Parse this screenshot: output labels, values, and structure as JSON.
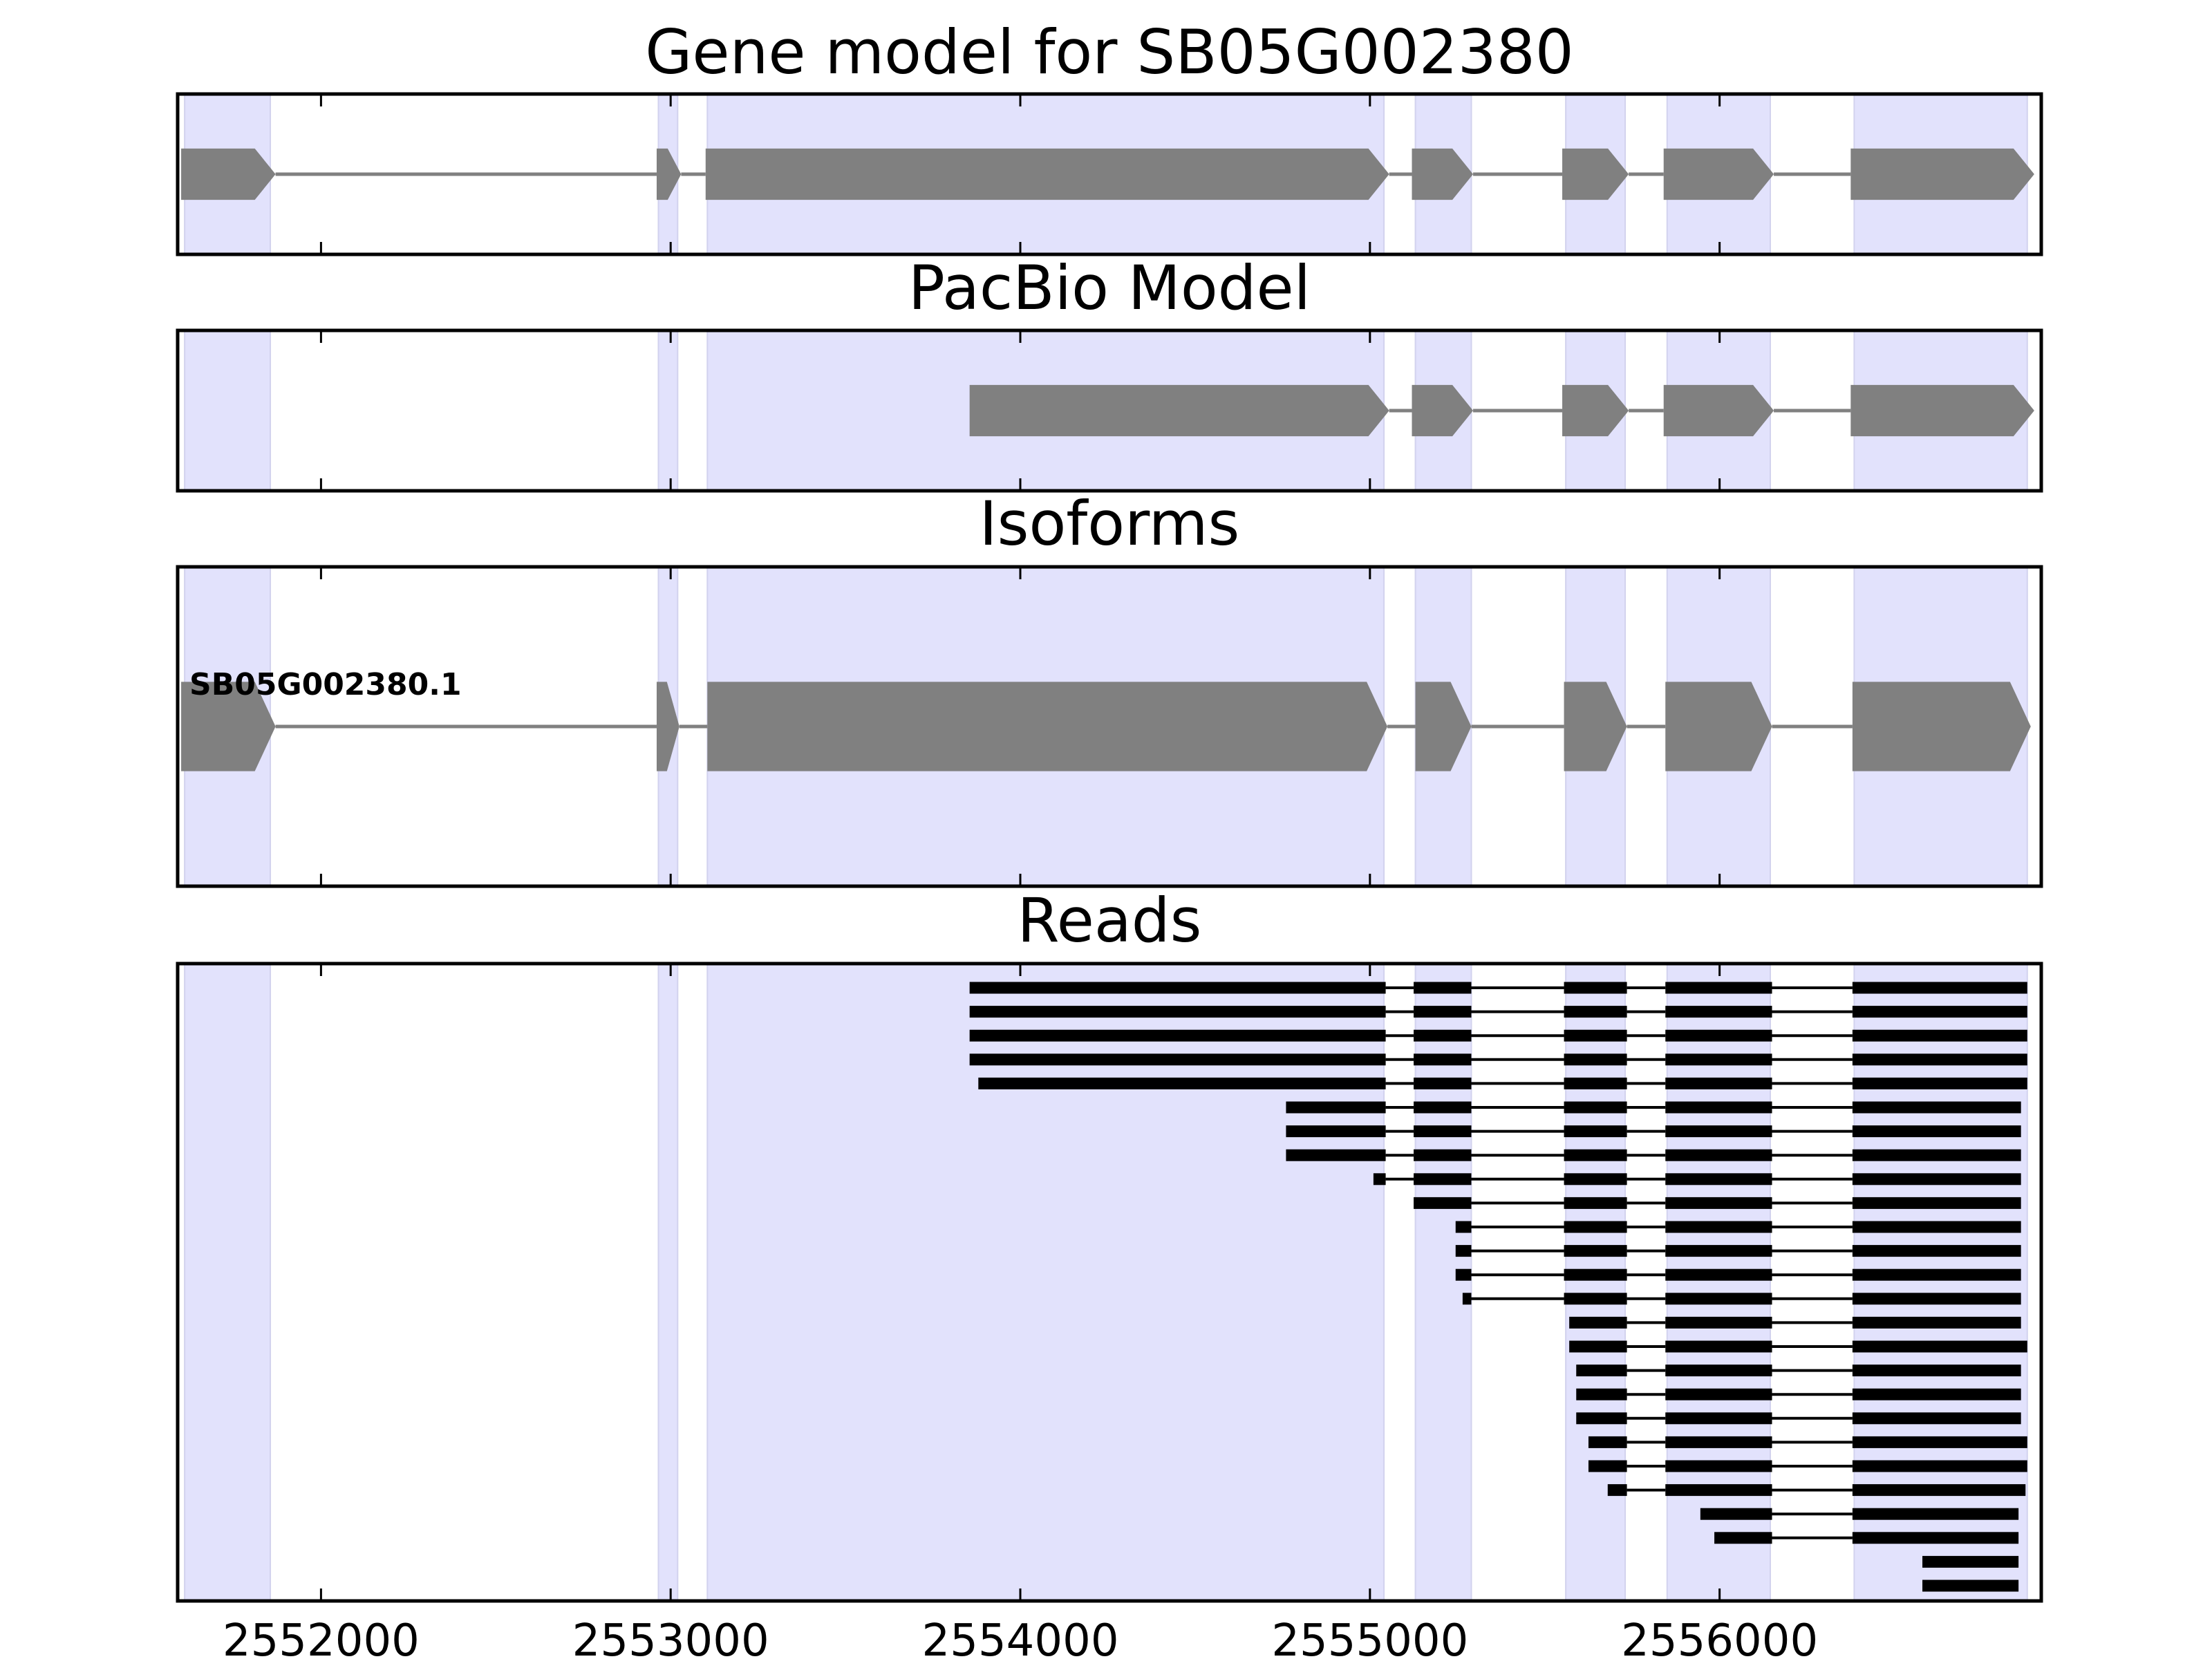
{
  "chart_data": {
    "type": "gene-model-track",
    "xlim": [
      2551590,
      2556920
    ],
    "xticks": [
      2552000,
      2553000,
      2554000,
      2555000,
      2556000
    ],
    "xtick_labels": [
      "2552000",
      "2553000",
      "2554000",
      "2555000",
      "2556000"
    ],
    "colors": {
      "exon_region_shading": "#e2e2fc",
      "model_feature": "#808080",
      "read": "#000000",
      "frame": "#000000"
    },
    "exon_regions": [
      [
        2551610,
        2551855
      ],
      [
        2552965,
        2553020
      ],
      [
        2553105,
        2555040
      ],
      [
        2555130,
        2555290
      ],
      [
        2555560,
        2555730
      ],
      [
        2555850,
        2556145
      ],
      [
        2556385,
        2556880
      ]
    ],
    "panels": [
      {
        "name": "gene-model",
        "title": "Gene model for SB05G002380",
        "track_kind": "model",
        "track_height": 0.32,
        "exons": [
          [
            2551600,
            2551870
          ],
          [
            2552960,
            2553030
          ],
          [
            2553100,
            2555055
          ],
          [
            2555120,
            2555295
          ],
          [
            2555550,
            2555740
          ],
          [
            2555840,
            2556155
          ],
          [
            2556375,
            2556900
          ]
        ]
      },
      {
        "name": "pacbio-model",
        "title": "PacBio Model",
        "track_kind": "model",
        "track_height": 0.32,
        "exons": [
          [
            2553855,
            2555055
          ],
          [
            2555120,
            2555295
          ],
          [
            2555550,
            2555740
          ],
          [
            2555840,
            2556155
          ],
          [
            2556375,
            2556900
          ]
        ]
      },
      {
        "name": "isoforms",
        "title": "Isoforms",
        "track_kind": "model",
        "track_height": 0.28,
        "isoform_label": "SB05G002380.1",
        "exons": [
          [
            2551600,
            2551870
          ],
          [
            2552960,
            2553025
          ],
          [
            2553105,
            2555050
          ],
          [
            2555130,
            2555290
          ],
          [
            2555555,
            2555735
          ],
          [
            2555845,
            2556150
          ],
          [
            2556380,
            2556890
          ]
        ]
      },
      {
        "name": "reads",
        "title": "Reads",
        "track_kind": "reads",
        "reads": [
          [
            [
              2553855,
              2555045
            ],
            [
              2555125,
              2555290
            ],
            [
              2555555,
              2555735
            ],
            [
              2555845,
              2556150
            ],
            [
              2556380,
              2556880
            ]
          ],
          [
            [
              2553855,
              2555045
            ],
            [
              2555125,
              2555290
            ],
            [
              2555555,
              2555735
            ],
            [
              2555845,
              2556150
            ],
            [
              2556380,
              2556880
            ]
          ],
          [
            [
              2553855,
              2555045
            ],
            [
              2555125,
              2555290
            ],
            [
              2555555,
              2555735
            ],
            [
              2555845,
              2556150
            ],
            [
              2556380,
              2556880
            ]
          ],
          [
            [
              2553855,
              2555045
            ],
            [
              2555125,
              2555290
            ],
            [
              2555555,
              2555735
            ],
            [
              2555845,
              2556150
            ],
            [
              2556380,
              2556880
            ]
          ],
          [
            [
              2553880,
              2555045
            ],
            [
              2555125,
              2555290
            ],
            [
              2555555,
              2555735
            ],
            [
              2555845,
              2556150
            ],
            [
              2556380,
              2556880
            ]
          ],
          [
            [
              2554760,
              2555045
            ],
            [
              2555125,
              2555290
            ],
            [
              2555555,
              2555735
            ],
            [
              2555845,
              2556150
            ],
            [
              2556380,
              2556862
            ]
          ],
          [
            [
              2554760,
              2555045
            ],
            [
              2555125,
              2555290
            ],
            [
              2555555,
              2555735
            ],
            [
              2555845,
              2556150
            ],
            [
              2556380,
              2556862
            ]
          ],
          [
            [
              2554760,
              2555045
            ],
            [
              2555125,
              2555290
            ],
            [
              2555555,
              2555735
            ],
            [
              2555845,
              2556150
            ],
            [
              2556380,
              2556862
            ]
          ],
          [
            [
              2555010,
              2555045
            ],
            [
              2555125,
              2555290
            ],
            [
              2555555,
              2555735
            ],
            [
              2555845,
              2556150
            ],
            [
              2556380,
              2556862
            ]
          ],
          [
            [
              2555125,
              2555290
            ],
            [
              2555555,
              2555735
            ],
            [
              2555845,
              2556150
            ],
            [
              2556380,
              2556862
            ]
          ],
          [
            [
              2555245,
              2555290
            ],
            [
              2555555,
              2555735
            ],
            [
              2555845,
              2556150
            ],
            [
              2556380,
              2556862
            ]
          ],
          [
            [
              2555245,
              2555290
            ],
            [
              2555555,
              2555735
            ],
            [
              2555845,
              2556150
            ],
            [
              2556380,
              2556862
            ]
          ],
          [
            [
              2555245,
              2555290
            ],
            [
              2555555,
              2555735
            ],
            [
              2555845,
              2556150
            ],
            [
              2556380,
              2556862
            ]
          ],
          [
            [
              2555265,
              2555290
            ],
            [
              2555555,
              2555735
            ],
            [
              2555845,
              2556150
            ],
            [
              2556380,
              2556862
            ]
          ],
          [
            [
              2555570,
              2555735
            ],
            [
              2555845,
              2556150
            ],
            [
              2556380,
              2556862
            ]
          ],
          [
            [
              2555570,
              2555735
            ],
            [
              2555845,
              2556150
            ],
            [
              2556380,
              2556880
            ]
          ],
          [
            [
              2555590,
              2555735
            ],
            [
              2555845,
              2556150
            ],
            [
              2556380,
              2556862
            ]
          ],
          [
            [
              2555590,
              2555735
            ],
            [
              2555845,
              2556150
            ],
            [
              2556380,
              2556862
            ]
          ],
          [
            [
              2555590,
              2555735
            ],
            [
              2555845,
              2556150
            ],
            [
              2556380,
              2556862
            ]
          ],
          [
            [
              2555625,
              2555735
            ],
            [
              2555845,
              2556150
            ],
            [
              2556380,
              2556880
            ]
          ],
          [
            [
              2555625,
              2555735
            ],
            [
              2555845,
              2556150
            ],
            [
              2556380,
              2556880
            ]
          ],
          [
            [
              2555680,
              2555735
            ],
            [
              2555845,
              2556150
            ],
            [
              2556380,
              2556875
            ]
          ],
          [
            [
              2555945,
              2556150
            ],
            [
              2556380,
              2556855
            ]
          ],
          [
            [
              2555985,
              2556150
            ],
            [
              2556380,
              2556855
            ]
          ],
          [
            [
              2556580,
              2556855
            ]
          ],
          [
            [
              2556580,
              2556855
            ]
          ]
        ]
      }
    ]
  }
}
